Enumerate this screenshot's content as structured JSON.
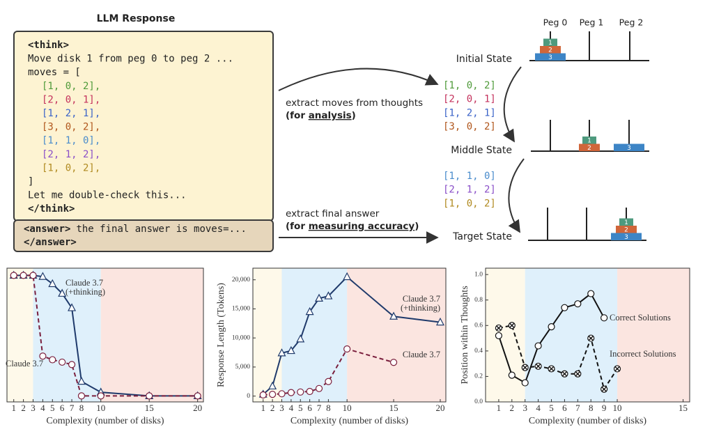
{
  "diagram": {
    "title": "LLM Response",
    "think_lines": [
      {
        "text": "<think>",
        "bold": true
      },
      {
        "text": "Move disk 1 from peg 0 to peg 2 ..."
      },
      {
        "text": "moves = ["
      },
      {
        "text": "[1, 0, 2],",
        "color": "#4f9a3a"
      },
      {
        "text": "[2, 0, 1],",
        "color": "#c4315c"
      },
      {
        "text": "[1, 2, 1],",
        "color": "#3b63c8"
      },
      {
        "text": "[3, 0, 2],",
        "color": "#b0561c"
      },
      {
        "text": "[1, 1, 0],",
        "color": "#4a8ccc"
      },
      {
        "text": "[2, 1, 2],",
        "color": "#8a4fc8"
      },
      {
        "text": "[1, 0, 2],",
        "color": "#b08a20"
      },
      {
        "text": "]"
      },
      {
        "text": "Let me double-check this..."
      },
      {
        "text": "</think>",
        "bold": true
      }
    ],
    "answer": {
      "open": "<answer>",
      "text": "the final answer is moves=...",
      "close": "</answer>"
    },
    "extract_moves": {
      "label": "extract moves  from thoughts",
      "purpose": [
        "(for ",
        "analysis",
        ")"
      ]
    },
    "extract_answer": {
      "label": "extract final answer",
      "purpose": [
        "(for ",
        "measuring accuracy",
        ")"
      ]
    },
    "extracted_moves": [
      {
        "text": "[1, 0, 2]",
        "color": "#4f9a3a"
      },
      {
        "text": "[2, 0, 1]",
        "color": "#c4315c"
      },
      {
        "text": "[1, 2, 1]",
        "color": "#3b63c8"
      },
      {
        "text": "[3, 0, 2]",
        "color": "#b0561c"
      }
    ],
    "remaining_moves": [
      {
        "text": "[1, 1, 0]",
        "color": "#4a8ccc"
      },
      {
        "text": "[2, 1, 2]",
        "color": "#8a4fc8"
      },
      {
        "text": "[1, 0, 2]",
        "color": "#b08a20"
      }
    ],
    "pegs": [
      "Peg 0",
      "Peg 1",
      "Peg 2"
    ],
    "disk_colors": [
      "#4e9a7e",
      "#d0663a",
      "#3d85c6"
    ],
    "states": [
      {
        "name": "Initial State",
        "pegs": [
          [
            3,
            2,
            1
          ],
          [],
          []
        ]
      },
      {
        "name": "Middle State",
        "pegs": [
          [],
          [
            2,
            1
          ],
          [
            3
          ]
        ]
      },
      {
        "name": "Target State",
        "pegs": [
          [],
          [],
          [
            3,
            2,
            1
          ]
        ]
      }
    ]
  },
  "chart_data": [
    {
      "type": "line",
      "x_label": "Complexity (number of disks)",
      "x": [
        1,
        2,
        3,
        4,
        5,
        6,
        7,
        8,
        10,
        15,
        20
      ],
      "xlim": [
        0.3,
        20.6
      ],
      "xticks": [
        1,
        2,
        3,
        4,
        5,
        6,
        7,
        8,
        10,
        15,
        20
      ],
      "ylim": [
        -5,
        106
      ],
      "region_breaks": [
        3,
        10
      ],
      "region_colors": [
        "#fef9ea",
        "#dff0fb",
        "#fbe5e0"
      ],
      "series": [
        {
          "name": "Claude 3.7 (+thinking)",
          "color": "#1f3a6b",
          "dashed": false,
          "marker": "triangle",
          "values": [
            100,
            100,
            100,
            99,
            93,
            85,
            73,
            12,
            3,
            0,
            0
          ]
        },
        {
          "name": "Claude 3.7",
          "color": "#7a1f3d",
          "dashed": true,
          "marker": "circle",
          "values": [
            100,
            100,
            100,
            33,
            30,
            28,
            26,
            0,
            0,
            0,
            0
          ]
        }
      ]
    },
    {
      "type": "line",
      "x_label": "Complexity (number of disks)",
      "y_label": "Response Length (Tokens)",
      "x": [
        1,
        2,
        3,
        4,
        5,
        6,
        7,
        8,
        10,
        15,
        20
      ],
      "xlim": [
        -0.1,
        20.6
      ],
      "xticks": [
        1,
        2,
        3,
        4,
        5,
        6,
        7,
        8,
        10,
        15,
        20
      ],
      "ylim": [
        -1000,
        22000
      ],
      "yticks": [
        0,
        {
          "value": 5000,
          "label": "5,000"
        },
        {
          "value": 10000,
          "label": "10,000"
        },
        {
          "value": 15000,
          "label": "15,000"
        },
        {
          "value": 20000,
          "label": "20,000"
        }
      ],
      "region_breaks": [
        3,
        10
      ],
      "region_colors": [
        "#fef9ea",
        "#dff0fb",
        "#fbe5e0"
      ],
      "series": [
        {
          "name": "Claude 3.7 (+thinking)",
          "color": "#1f3a6b",
          "dashed": false,
          "marker": "triangle",
          "values": [
            300,
            1700,
            7400,
            7800,
            9800,
            14500,
            16800,
            17200,
            20500,
            13700,
            12700
          ]
        },
        {
          "name": "Claude 3.7",
          "color": "#7a1f3d",
          "dashed": true,
          "marker": "circle",
          "values": [
            200,
            300,
            400,
            600,
            700,
            800,
            1300,
            2500,
            8100,
            5800,
            null
          ]
        }
      ]
    },
    {
      "type": "line",
      "x_label": "Complexity (number of disks)",
      "y_label": "Position within Thoughts",
      "x": [
        1,
        2,
        3,
        4,
        5,
        6,
        7,
        8,
        9,
        10
      ],
      "xlim": [
        0,
        15.5
      ],
      "xticks": [
        1,
        2,
        3,
        4,
        5,
        6,
        7,
        8,
        9,
        10,
        15
      ],
      "ylim": [
        0,
        1.05
      ],
      "yticks": [
        {
          "value": 0,
          "label": "0.0"
        },
        0.2,
        0.4,
        0.6,
        0.8,
        {
          "value": 1,
          "label": "1.0"
        }
      ],
      "region_breaks": [
        3,
        10
      ],
      "region_colors": [
        "#fef9ea",
        "#dff0fb",
        "#fbe5e0"
      ],
      "series": [
        {
          "name": "Correct Solutions",
          "color": "#111111",
          "dashed": false,
          "marker": "circle",
          "values": [
            0.52,
            0.21,
            0.15,
            0.44,
            0.59,
            0.74,
            0.77,
            0.85,
            0.66,
            null
          ]
        },
        {
          "name": "Incorrect Solutions",
          "color": "#111111",
          "dashed": true,
          "marker": "cross",
          "values": [
            0.58,
            0.6,
            0.27,
            0.28,
            0.26,
            0.22,
            0.22,
            0.5,
            0.1,
            0.26
          ]
        }
      ]
    }
  ]
}
